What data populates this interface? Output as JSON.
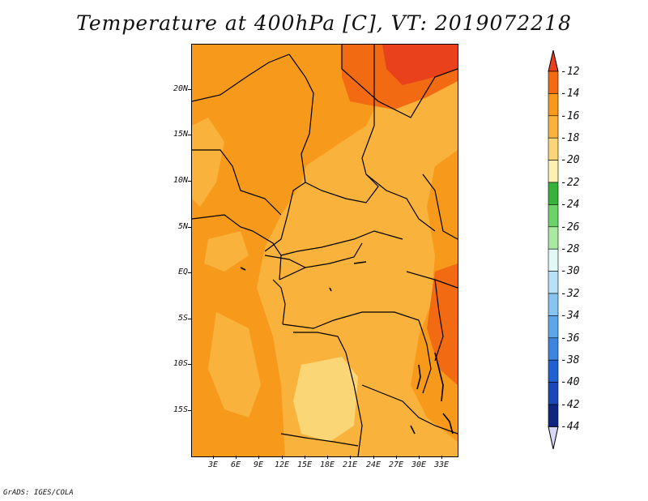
{
  "title": "Temperature at 400hPa [C], VT: 2019072218",
  "credit": "GrADS: IGES/COLA",
  "map": {
    "lat_ticks": [
      "20N",
      "15N",
      "10N",
      "5N",
      "EQ",
      "5S",
      "10S",
      "15S"
    ],
    "lon_ticks": [
      "3E",
      "6E",
      "9E",
      "12E",
      "15E",
      "18E",
      "21E",
      "24E",
      "27E",
      "30E",
      "33E"
    ],
    "field": "temperature_400hPa",
    "units": "C"
  },
  "colorbar": {
    "labels": [
      "-12",
      "-14",
      "-16",
      "-18",
      "-20",
      "-22",
      "-24",
      "-26",
      "-28",
      "-30",
      "-32",
      "-34",
      "-36",
      "-38",
      "-40",
      "-42",
      "-44"
    ],
    "colors": [
      "#e8411c",
      "#f26a12",
      "#f79a1c",
      "#f9b23c",
      "#fbd676",
      "#fdf0b0",
      "#36b43a",
      "#6ad46a",
      "#a8eba0",
      "#e2f8f6",
      "#b8e0f6",
      "#88c4f0",
      "#5ea6ea",
      "#3c86e0",
      "#2060d0",
      "#1a48b8",
      "#0f2580",
      "#d8d8f6"
    ]
  }
}
